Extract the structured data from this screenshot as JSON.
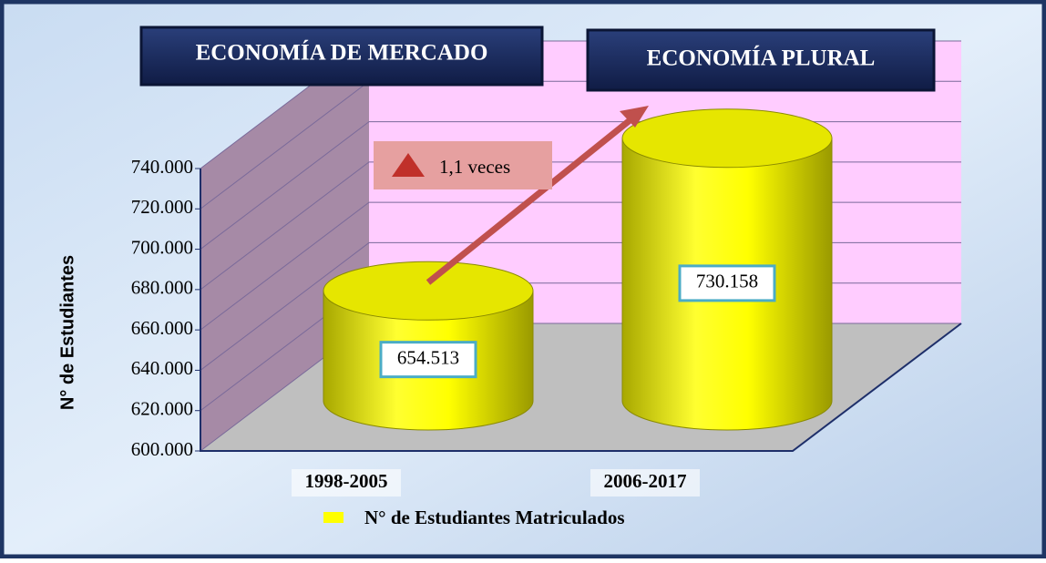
{
  "chart_data": {
    "type": "cylinder3d",
    "ylabel": "N° de Estudiantes",
    "categories": [
      "1998-2005",
      "2006-2017"
    ],
    "series": [
      {
        "name": "N° de Estudiantes Matriculados",
        "color": "#ffff00",
        "values": [
          654513,
          730158
        ],
        "value_labels": [
          "654.513",
          "730.158"
        ]
      }
    ],
    "ylim": [
      600000,
      740000
    ],
    "yticks": [
      {
        "value": 600000,
        "label": "600.000"
      },
      {
        "value": 620000,
        "label": "620.000"
      },
      {
        "value": 640000,
        "label": "640.000"
      },
      {
        "value": 660000,
        "label": "660.000"
      },
      {
        "value": 680000,
        "label": "680.000"
      },
      {
        "value": 700000,
        "label": "700.000"
      },
      {
        "value": 720000,
        "label": "720.000"
      },
      {
        "value": 740000,
        "label": "740.000"
      }
    ],
    "grid": true,
    "annotations": [
      "ECONOMÍA DE MERCADO",
      "ECONOMÍA PLURAL",
      "1,1 veces"
    ]
  }
}
